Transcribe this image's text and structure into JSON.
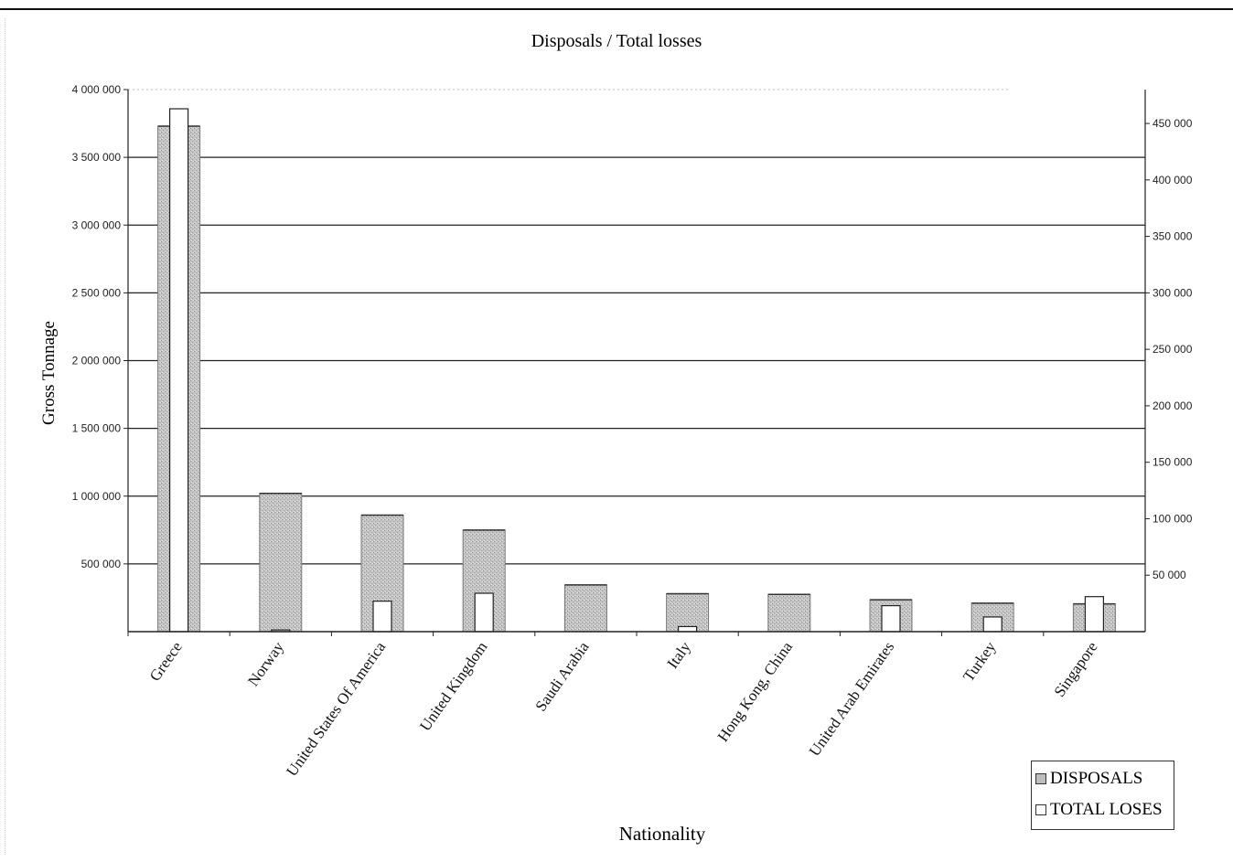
{
  "chart_data": {
    "type": "bar",
    "title": "Disposals / Total losses",
    "xlabel": "Nationality",
    "ylabel": "Gross Tonnage",
    "categories": [
      "Greece",
      "Norway",
      "United States Of America",
      "United Kingdom",
      "Saudi Arabia",
      "Italy",
      "Hong Kong, China",
      "United Arab Emirates",
      "Turkey",
      "Singapore"
    ],
    "series": [
      {
        "name": "DISPOSALS",
        "axis": "left",
        "values": [
          3730000,
          1020000,
          860000,
          750000,
          345000,
          280000,
          275000,
          235000,
          210000,
          205000
        ],
        "color": "#bdbdbd"
      },
      {
        "name": "TOTAL LOSES",
        "axis": "right",
        "values": [
          463000,
          1500,
          27000,
          34000,
          0,
          4500,
          0,
          23000,
          13000,
          31000
        ],
        "color": "#ffffff"
      }
    ],
    "ylim_left": [
      0,
      4000000
    ],
    "ylim_right": [
      0,
      480000
    ],
    "yticks_left": [
      "500 000",
      "1 000 000",
      "1 500 000",
      "2 000 000",
      "2 500 000",
      "3 000 000",
      "3 500 000",
      "4 000 000"
    ],
    "yticks_right": [
      "50 000",
      "100 000",
      "150 000",
      "200 000",
      "250 000",
      "300 000",
      "350 000",
      "400 000",
      "450 000"
    ],
    "grid": true,
    "legend": "bottom-right"
  }
}
